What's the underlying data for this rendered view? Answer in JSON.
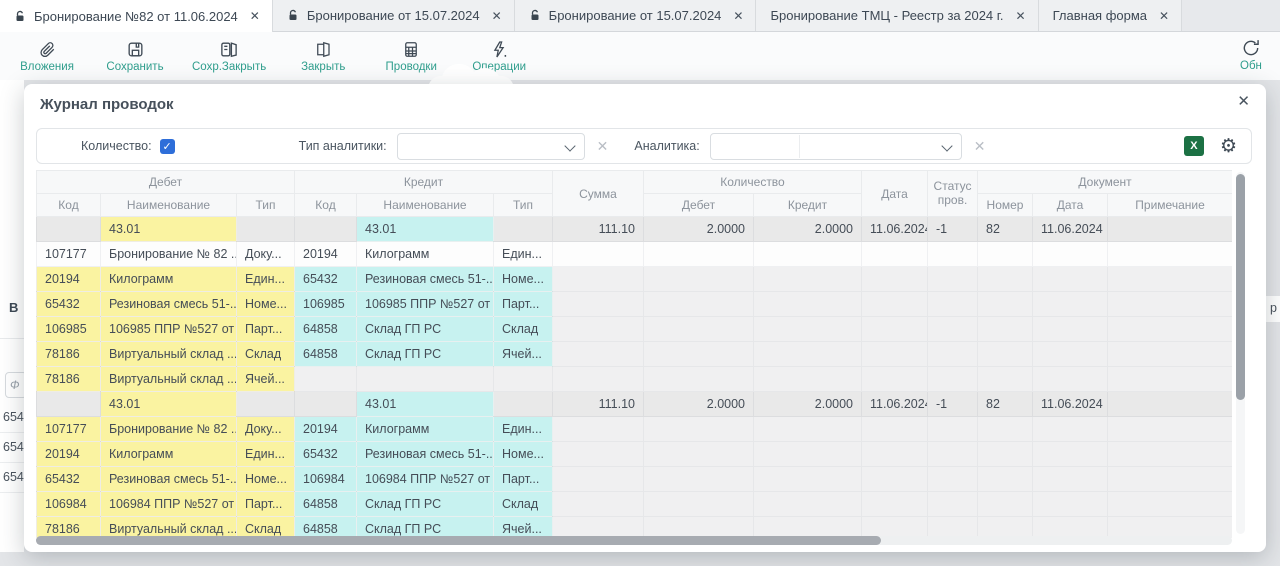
{
  "theme": {
    "accent": "#2f9e8d",
    "excel_green": "#1c7144",
    "checkbox_blue": "#2e6ed9",
    "debit_highlight": "#faf3a1",
    "credit_highlight": "#c7f2f0",
    "summary_bg": "#e9e9e9"
  },
  "tabs": [
    {
      "label": "Бронирование №82 от 11.06.2024",
      "active": true
    },
    {
      "label": "Бронирование от 15.07.2024",
      "active": false
    },
    {
      "label": "Бронирование от 15.07.2024",
      "active": false
    },
    {
      "label": "Бронирование ТМЦ - Реестр за 2024 г.",
      "active": false
    },
    {
      "label": "Главная форма",
      "active": false
    }
  ],
  "toolbar": {
    "buttons": [
      {
        "label": "Вложения"
      },
      {
        "label": "Сохранить"
      },
      {
        "label": "Сохр.Закрыть"
      },
      {
        "label": "Закрыть"
      },
      {
        "label": "Проводки"
      },
      {
        "label": "Операции"
      }
    ],
    "refresh_label": "Обн"
  },
  "dialog": {
    "title": "Журнал проводок",
    "close_glyph": "✕",
    "excel_icon_letter": "X",
    "checkbox_glyph": "✓",
    "filters": {
      "quantity_label": "Количество:",
      "quantity_checked": true,
      "analytics_type_label": "Тип аналитики:",
      "analytics_type_value": "",
      "analytics_label": "Аналитика:",
      "analytics_value": ""
    },
    "table": {
      "groups": {
        "debit": "Дебет",
        "credit": "Кредит",
        "quantity": "Количество",
        "document": "Документ"
      },
      "columns": {
        "code": "Код",
        "name": "Наименование",
        "type": "Тип",
        "sum": "Сумма",
        "qty_debit": "Дебет",
        "qty_credit": "Кредит",
        "date": "Дата",
        "status": "Статус пров.",
        "doc_number": "Номер",
        "doc_date": "Дата",
        "note": "Примечание"
      },
      "rows": [
        {
          "kind": "summary",
          "d_code": "",
          "d_name": "43.01",
          "d_type": "",
          "c_code": "",
          "c_name": "43.01",
          "c_type": "",
          "sum": "111.10",
          "qty_debit": "2.0000",
          "qty_credit": "2.0000",
          "date": "11.06.2024",
          "status": "-1",
          "doc_number": "82",
          "doc_date": "11.06.2024",
          "note": ""
        },
        {
          "kind": "detail",
          "white": true,
          "d_code": "107177",
          "d_name": "Бронирование № 82 ...",
          "d_type": "Доку...",
          "c_code": "20194",
          "c_name": "Килограмм",
          "c_type": "Един...",
          "sum": "",
          "qty_debit": "",
          "qty_credit": "",
          "date": "",
          "status": "",
          "doc_number": "",
          "doc_date": "",
          "note": ""
        },
        {
          "kind": "detail",
          "d_code": "20194",
          "d_name": "Килограмм",
          "d_type": "Един...",
          "c_code": "65432",
          "c_name": "Резиновая смесь 51-...",
          "c_type": "Номе...",
          "sum": "",
          "qty_debit": "",
          "qty_credit": "",
          "date": "",
          "status": "",
          "doc_number": "",
          "doc_date": "",
          "note": ""
        },
        {
          "kind": "detail",
          "d_code": "65432",
          "d_name": "Резиновая смесь 51-...",
          "d_type": "Номе...",
          "c_code": "106985",
          "c_name": "106985 ППР №527 от ...",
          "c_type": "Парт...",
          "sum": "",
          "qty_debit": "",
          "qty_credit": "",
          "date": "",
          "status": "",
          "doc_number": "",
          "doc_date": "",
          "note": ""
        },
        {
          "kind": "detail",
          "d_code": "106985",
          "d_name": "106985 ППР №527 от ...",
          "d_type": "Парт...",
          "c_code": "64858",
          "c_name": "Склад ГП РС",
          "c_type": "Склад",
          "sum": "",
          "qty_debit": "",
          "qty_credit": "",
          "date": "",
          "status": "",
          "doc_number": "",
          "doc_date": "",
          "note": ""
        },
        {
          "kind": "detail",
          "d_code": "78186",
          "d_name": "Виртуальный склад ...",
          "d_type": "Склад",
          "c_code": "64858",
          "c_name": "Склад ГП РС",
          "c_type": "Ячей...",
          "sum": "",
          "qty_debit": "",
          "qty_credit": "",
          "date": "",
          "status": "",
          "doc_number": "",
          "doc_date": "",
          "note": ""
        },
        {
          "kind": "detail",
          "d_code": "78186",
          "d_name": "Виртуальный склад ...",
          "d_type": "Ячей...",
          "c_code": "",
          "c_name": "",
          "c_type": "",
          "sum": "",
          "qty_debit": "",
          "qty_credit": "",
          "date": "",
          "status": "",
          "doc_number": "",
          "doc_date": "",
          "note": ""
        },
        {
          "kind": "summary",
          "d_code": "",
          "d_name": "43.01",
          "d_type": "",
          "c_code": "",
          "c_name": "43.01",
          "c_type": "",
          "sum": "111.10",
          "qty_debit": "2.0000",
          "qty_credit": "2.0000",
          "date": "11.06.2024",
          "status": "-1",
          "doc_number": "82",
          "doc_date": "11.06.2024",
          "note": ""
        },
        {
          "kind": "detail",
          "d_code": "107177",
          "d_name": "Бронирование № 82 ...",
          "d_type": "Доку...",
          "c_code": "20194",
          "c_name": "Килограмм",
          "c_type": "Един...",
          "sum": "",
          "qty_debit": "",
          "qty_credit": "",
          "date": "",
          "status": "",
          "doc_number": "",
          "doc_date": "",
          "note": ""
        },
        {
          "kind": "detail",
          "d_code": "20194",
          "d_name": "Килограмм",
          "d_type": "Един...",
          "c_code": "65432",
          "c_name": "Резиновая смесь 51-...",
          "c_type": "Номе...",
          "sum": "",
          "qty_debit": "",
          "qty_credit": "",
          "date": "",
          "status": "",
          "doc_number": "",
          "doc_date": "",
          "note": ""
        },
        {
          "kind": "detail",
          "d_code": "65432",
          "d_name": "Резиновая смесь 51-...",
          "d_type": "Номе...",
          "c_code": "106984",
          "c_name": "106984 ППР №527 от ...",
          "c_type": "Парт...",
          "sum": "",
          "qty_debit": "",
          "qty_credit": "",
          "date": "",
          "status": "",
          "doc_number": "",
          "doc_date": "",
          "note": ""
        },
        {
          "kind": "detail",
          "d_code": "106984",
          "d_name": "106984 ППР №527 от ...",
          "d_type": "Парт...",
          "c_code": "64858",
          "c_name": "Склад ГП РС",
          "c_type": "Склад",
          "sum": "",
          "qty_debit": "",
          "qty_credit": "",
          "date": "",
          "status": "",
          "doc_number": "",
          "doc_date": "",
          "note": ""
        },
        {
          "kind": "detail",
          "d_code": "78186",
          "d_name": "Виртуальный склад ...",
          "d_type": "Склад",
          "c_code": "64858",
          "c_name": "Склад ГП РС",
          "c_type": "Ячей...",
          "sum": "",
          "qty_debit": "",
          "qty_credit": "",
          "date": "",
          "status": "",
          "doc_number": "",
          "doc_date": "",
          "note": ""
        }
      ]
    }
  },
  "background": {
    "left_partial_label": "В",
    "left_filter_glyph": "Ф",
    "left_rows": [
      "654",
      "654",
      "654"
    ],
    "right_partial_text": "р"
  }
}
